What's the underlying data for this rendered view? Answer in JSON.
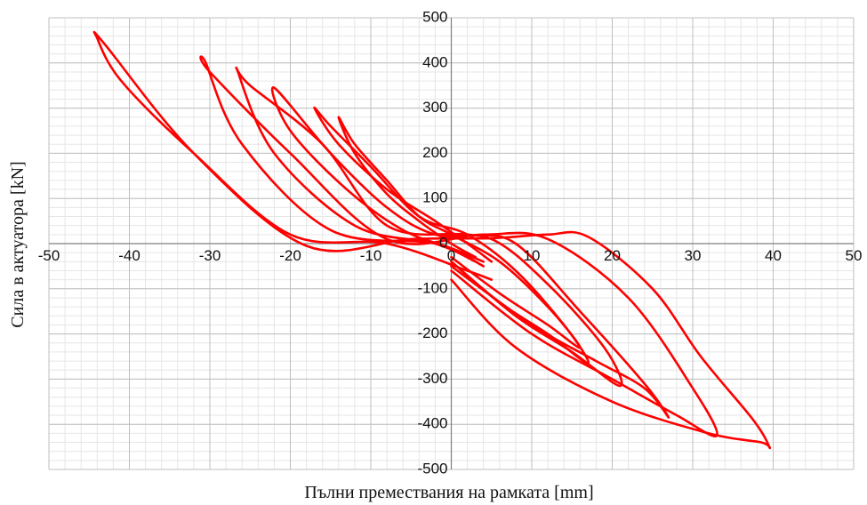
{
  "chart_data": {
    "type": "line",
    "title": "",
    "xlabel": "Пълни премествания на рамката [mm]",
    "ylabel": "Сила в актуатора [kN]",
    "xlim": [
      -50,
      50
    ],
    "ylim": [
      -500,
      500
    ],
    "x_major_step": 10,
    "y_major_step": 100,
    "x_minor_step": 2,
    "y_minor_step": 20,
    "grid": true,
    "legend": "none",
    "line_color": "#ff0000",
    "x_ticks": [
      -50,
      -40,
      -30,
      -20,
      -10,
      0,
      10,
      20,
      30,
      40,
      50
    ],
    "y_ticks": [
      500,
      400,
      300,
      200,
      100,
      0,
      -100,
      -200,
      -300,
      -400,
      -500
    ],
    "series": [
      {
        "loops": [
          {
            "x": [
              0,
              6,
              12,
              16,
              12,
              6,
              0,
              -4,
              -8,
              -12,
              -14,
              -12,
              -8,
              -4,
              0,
              3
            ],
            "y": [
              -30,
              -110,
              -180,
              -230,
              -140,
              -40,
              20,
              60,
              140,
              220,
              280,
              200,
              110,
              50,
              0,
              -30
            ]
          },
          {
            "x": [
              0,
              6,
              12,
              17,
              14,
              8,
              2,
              -4,
              -10,
              -15,
              -17,
              -14,
              -8,
              -2,
              2,
              5
            ],
            "y": [
              -40,
              -130,
              -200,
              -265,
              -180,
              -60,
              20,
              60,
              170,
              260,
              300,
              220,
              120,
              50,
              0,
              -40
            ]
          },
          {
            "x": [
              0,
              8,
              15,
              21,
              19,
              12,
              5,
              -2,
              -8,
              -15,
              -22,
              -20,
              -13,
              -6,
              0,
              4
            ],
            "y": [
              -40,
              -160,
              -240,
              -315,
              -230,
              -90,
              10,
              20,
              80,
              200,
              345,
              250,
              120,
              30,
              -10,
              -40
            ]
          },
          {
            "x": [
              0,
              10,
              18,
              24,
              27,
              24,
              16,
              8,
              2,
              -8,
              -16,
              -25,
              -26.5,
              -22,
              -12,
              -2,
              3
            ],
            "y": [
              -50,
              -180,
              -260,
              -320,
              -385,
              -310,
              -150,
              0,
              20,
              40,
              220,
              350,
              380,
              200,
              40,
              0,
              -40
            ]
          },
          {
            "x": [
              0,
              10,
              20,
              28,
              33,
              30,
              22,
              12,
              4,
              -8,
              -20,
              -30,
              -30.5,
              -26,
              -15,
              -2,
              4
            ],
            "y": [
              -60,
              -200,
              -300,
              -380,
              -425,
              -320,
              -120,
              10,
              20,
              10,
              200,
              380,
              400,
              220,
              30,
              0,
              -50
            ]
          },
          {
            "x": [
              0,
              8,
              20,
              32,
              38.5,
              39.5,
              37.5,
              31,
              25,
              17,
              12,
              5,
              -5,
              -18,
              -32,
              -43,
              -44,
              -41,
              -32,
              -20,
              -8,
              2,
              5
            ],
            "y": [
              -80,
              -230,
              -350,
              -420,
              -440,
              -450,
              -390,
              -250,
              -100,
              15,
              20,
              12,
              10,
              -5,
              200,
              440,
              455,
              360,
              200,
              20,
              0,
              -60,
              -80
            ]
          }
        ]
      }
    ]
  }
}
